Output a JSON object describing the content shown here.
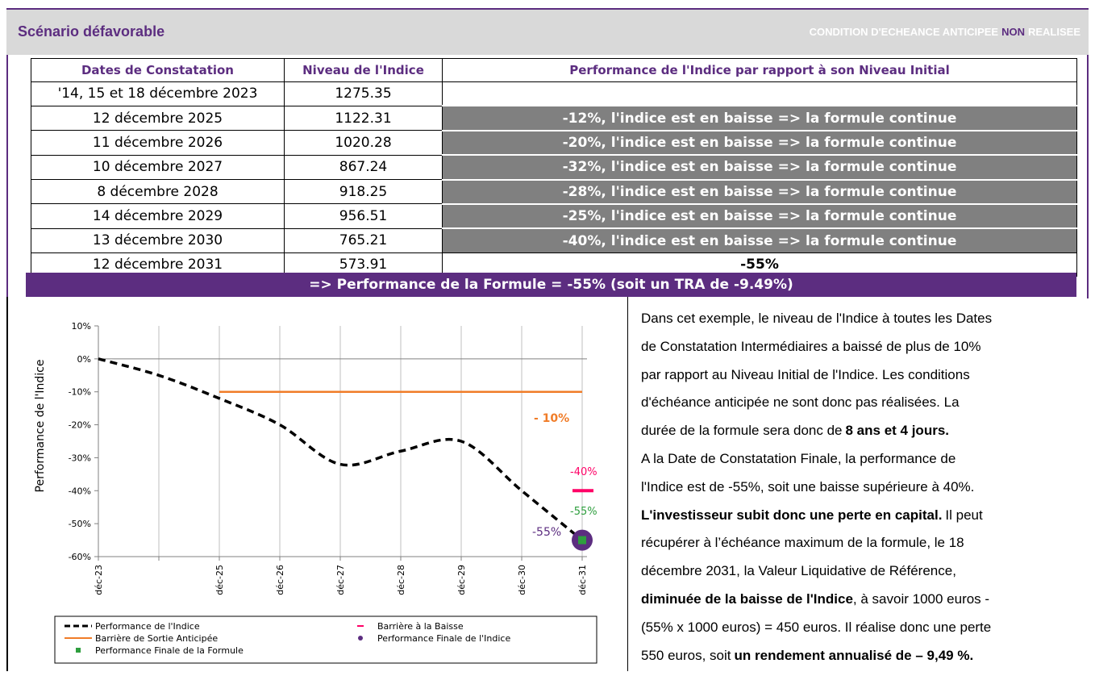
{
  "header": {
    "title": "Scénario défavorable",
    "status": {
      "before": "CONDITION D'ECHEANCE ANTICIPEE",
      "highlight": "NON",
      "after": "REALISEE"
    }
  },
  "table": {
    "columns": [
      "Dates de Constatation",
      "Niveau de l'Indice",
      "Performance de l'Indice par rapport à son Niveau Initial"
    ],
    "rows": [
      [
        "'14, 15 et 18 décembre 2023",
        "1275.35",
        null
      ],
      [
        "12 décembre 2025",
        "1122.31",
        "-12%, l'indice est en baisse => la formule continue"
      ],
      [
        "11 décembre 2026",
        "1020.28",
        "-20%, l'indice est en baisse => la formule continue"
      ],
      [
        "10 décembre 2027",
        "867.24",
        "-32%, l'indice est en baisse => la formule continue"
      ],
      [
        "8 décembre 2028",
        "918.25",
        "-28%, l'indice est en baisse => la formule continue"
      ],
      [
        "14 décembre 2029",
        "956.51",
        "-25%, l'indice est en baisse => la formule continue"
      ],
      [
        "13 décembre 2030",
        "765.21",
        "-40%, l'indice est en baisse => la formule continue"
      ],
      [
        "12 décembre 2031",
        "573.91",
        "-55%"
      ]
    ],
    "result": "=> Performance de la Formule = -55% (soit un TRA de -9.49%)"
  },
  "chart_data": {
    "type": "line",
    "y_label": "Performance de l'Indice",
    "categories": [
      "déc-23",
      null,
      "déc-25",
      "déc-26",
      "déc-27",
      "déc-28",
      "déc-29",
      "déc-30",
      "déc-31"
    ],
    "ylim": [
      -60,
      10
    ],
    "yticks": [
      {
        "value": -60,
        "label": "-60%"
      },
      {
        "value": -50,
        "label": "-50%"
      },
      {
        "value": -40,
        "label": "-40%"
      },
      {
        "value": -30,
        "label": "-30%"
      },
      {
        "value": -20,
        "label": "-20%"
      },
      {
        "value": -10,
        "label": "-10%"
      },
      {
        "value": 0,
        "label": "0%"
      },
      {
        "value": 10,
        "label": "10%"
      }
    ],
    "grid": true,
    "series": [
      {
        "name": "Performance de l'Indice",
        "color": "#000000",
        "style": "dashed-smooth",
        "values": [
          0,
          -5,
          -12,
          -20,
          -32,
          -28,
          -25,
          -40,
          -55
        ]
      },
      {
        "name": "Barrière à la Baisse",
        "color": "#ff0066",
        "style": "dash-marker",
        "values": [
          null,
          null,
          null,
          null,
          null,
          null,
          null,
          null,
          -40
        ]
      },
      {
        "name": "Barrière de Sortie Anticipée",
        "color": "#f07c28",
        "style": "line",
        "values": [
          null,
          null,
          -10,
          -10,
          -10,
          -10,
          -10,
          -10,
          -10
        ]
      },
      {
        "name": "Performance Finale de l'Indice",
        "color": "#5c2d80",
        "style": "circle",
        "values": [
          null,
          null,
          null,
          null,
          null,
          null,
          null,
          null,
          -55
        ]
      },
      {
        "name": "Performance Finale de la Formule",
        "color": "#2e9e3e",
        "style": "square",
        "values": [
          null,
          null,
          null,
          null,
          null,
          null,
          null,
          null,
          -55
        ]
      }
    ],
    "annotations": [
      {
        "text": "- 10%",
        "color": "#f07c28"
      },
      {
        "text": "-40%",
        "color": "#ff0066"
      },
      {
        "text": "-55%",
        "color": "#2e9e3e"
      },
      {
        "text": "-55%",
        "color": "#5c2d80"
      }
    ]
  },
  "text": {
    "lines": [
      [
        {
          "text": "Dans cet exemple, le niveau de l'Indice à toutes les Dates"
        }
      ],
      [
        {
          "text": "de Constatation Intermédiaires a baissé de plus de 10%"
        }
      ],
      [
        {
          "text": "par rapport au Niveau Initial de l'Indice. Les conditions"
        }
      ],
      [
        {
          "text": "d'échéance anticipée ne sont donc pas réalisées. La"
        }
      ],
      [
        {
          "text": "durée de la formule sera donc de"
        },
        {
          "text": "8 ans et 4 jours.",
          "bold": true
        }
      ],
      [
        {
          "text": "A la Date de Constatation Finale, la performance de"
        }
      ],
      [
        {
          "text": "l'Indice est de -55%, soit une baisse supérieure à 40%."
        }
      ],
      [
        {
          "text": "L'investisseur subit donc une perte en capital.",
          "bold": true
        },
        {
          "text": "Il peut"
        }
      ],
      [
        {
          "text": "récupérer à l’échéance maximum de la formule, le 18"
        }
      ],
      [
        {
          "text": "décembre 2031, la Valeur Liquidative de Référence,"
        }
      ],
      [
        {
          "text": "diminuée de la baisse de l'Indice",
          "bold": true
        },
        {
          "text": ", à savoir 1000 euros -"
        }
      ],
      [
        {
          "text": "(55% x 1000 euros) = 450 euros. Il réalise donc une perte"
        }
      ],
      [
        {
          "text": "550 euros, soit"
        },
        {
          "text": "un rendement annualisé de – 9,49 %.",
          "bold": true
        }
      ]
    ]
  }
}
